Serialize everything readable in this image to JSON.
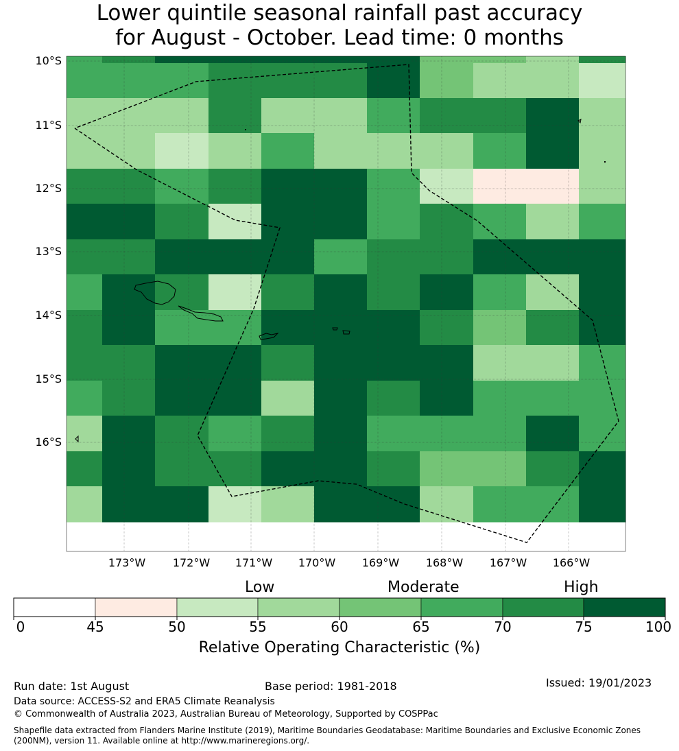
{
  "title": {
    "line1": "Lower quintile seasonal rainfall past accuracy",
    "line2": "for August - October. Lead time: 0 months"
  },
  "map": {
    "lat_labels": [
      "10°S",
      "11°S",
      "12°S",
      "13°S",
      "14°S",
      "15°S",
      "16°S"
    ],
    "lon_labels": [
      "173°W",
      "172°W",
      "171°W",
      "170°W",
      "169°W",
      "168°W",
      "167°W",
      "166°W"
    ],
    "grid": [
      [
        5,
        6,
        7,
        7,
        7,
        7,
        7,
        4,
        4,
        3,
        6
      ],
      [
        5,
        5,
        5,
        6,
        6,
        6,
        7,
        4,
        3,
        3,
        2
      ],
      [
        3,
        3,
        3,
        6,
        3,
        3,
        5,
        6,
        6,
        7,
        3
      ],
      [
        3,
        3,
        2,
        3,
        5,
        3,
        3,
        3,
        5,
        7,
        3
      ],
      [
        6,
        6,
        5,
        6,
        7,
        7,
        5,
        2,
        1,
        1,
        3
      ],
      [
        7,
        7,
        6,
        2,
        7,
        7,
        5,
        6,
        5,
        3,
        5
      ],
      [
        6,
        6,
        7,
        7,
        7,
        5,
        6,
        6,
        7,
        7,
        7
      ],
      [
        5,
        7,
        6,
        2,
        6,
        7,
        6,
        7,
        5,
        3,
        7
      ],
      [
        6,
        7,
        5,
        5,
        7,
        7,
        7,
        6,
        4,
        6,
        7
      ],
      [
        6,
        6,
        7,
        7,
        6,
        7,
        7,
        7,
        3,
        3,
        5
      ],
      [
        5,
        6,
        7,
        7,
        3,
        7,
        6,
        7,
        5,
        5,
        5
      ],
      [
        3,
        7,
        6,
        5,
        6,
        7,
        5,
        5,
        5,
        7,
        5
      ],
      [
        6,
        7,
        6,
        6,
        7,
        7,
        6,
        4,
        4,
        6,
        7
      ],
      [
        3,
        7,
        7,
        2,
        3,
        7,
        7,
        3,
        5,
        5,
        7
      ]
    ],
    "eez_boundary": [
      [
        109,
        187
      ],
      [
        200,
        248
      ],
      [
        343,
        321
      ],
      [
        408,
        332
      ],
      [
        370,
        450
      ],
      [
        288,
        635
      ],
      [
        338,
        724
      ],
      [
        464,
        701
      ],
      [
        520,
        706
      ],
      [
        590,
        735
      ],
      [
        768,
        791
      ],
      [
        902,
        614
      ],
      [
        864,
        467
      ],
      [
        696,
        322
      ],
      [
        626,
        278
      ],
      [
        600,
        252
      ],
      [
        596,
        94
      ],
      [
        286,
        119
      ],
      [
        109,
        187
      ]
    ]
  },
  "legend": {
    "categories": [
      "Low",
      "Moderate",
      "High"
    ],
    "ticks": [
      "0",
      "45",
      "50",
      "55",
      "60",
      "65",
      "70",
      "75",
      "100"
    ],
    "colors": [
      "#ffffff",
      "#feebe2",
      "#c7e9c0",
      "#a1d99b",
      "#74c476",
      "#41ab5d",
      "#238b45",
      "#005a32"
    ],
    "title": "Relative Operating Characteristic (%)"
  },
  "footer": {
    "run_date": "Run date: 1st August",
    "base_period": "Base period: 1981-2018",
    "issued": "Issued: 19/01/2023",
    "data_source": "Data source: ACCESS-S2 and ERA5 Climate Reanalysis",
    "copyright": "© Commonwealth of Australia 2023, Australian Bureau of Meteorology, Supported by COSPPac",
    "shapefile": "Shapefile data extracted from Flanders Marine Institute (2019), Maritime Boundaries Geodatabase: Maritime Boundaries and Exclusive Economic Zones (200NM), version 11. Available online at http://www.marineregions.org/."
  }
}
